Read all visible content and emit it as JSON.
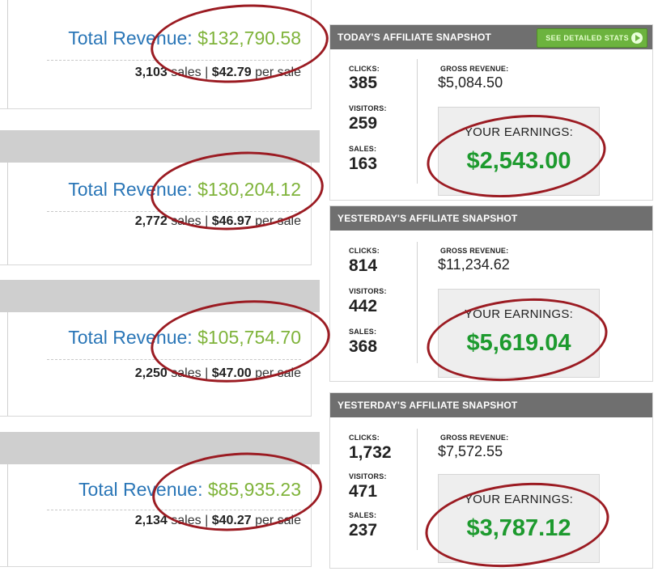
{
  "revenue_cards": [
    {
      "label": "Total Revenue:",
      "value": "$132,790.58",
      "sales": "3,103",
      "sales_word": "sales",
      "sep": "|",
      "per_sale": "$42.79",
      "per_word": "per sale"
    },
    {
      "label": "Total Revenue:",
      "value": "$130,204.12",
      "sales": "2,772",
      "sales_word": "sales",
      "sep": "|",
      "per_sale": "$46.97",
      "per_word": "per sale"
    },
    {
      "label": "Total Revenue:",
      "value": "$105,754.70",
      "sales": "2,250",
      "sales_word": "sales",
      "sep": "|",
      "per_sale": "$47.00",
      "per_word": "per sale"
    },
    {
      "label": "Total Revenue:",
      "value": "$85,935.23",
      "sales": "2,134",
      "sales_word": "sales",
      "sep": "|",
      "per_sale": "$40.27",
      "per_word": "per sale"
    }
  ],
  "snapshots": [
    {
      "title": "TODAY'S AFFILIATE SNAPSHOT",
      "button": "SEE DETAILED STATS",
      "clicks_label": "CLICKS:",
      "clicks": "385",
      "visitors_label": "VISITORS:",
      "visitors": "259",
      "sales_label": "SALES:",
      "sales": "163",
      "gross_label": "GROSS REVENUE:",
      "gross": "$5,084.50",
      "earn_label": "YOUR EARNINGS:",
      "earnings": "$2,543.00"
    },
    {
      "title": "YESTERDAY'S AFFILIATE SNAPSHOT",
      "clicks_label": "CLICKS:",
      "clicks": "814",
      "visitors_label": "VISITORS:",
      "visitors": "442",
      "sales_label": "SALES:",
      "sales": "368",
      "gross_label": "GROSS REVENUE:",
      "gross": "$11,234.62",
      "earn_label": "YOUR EARNINGS:",
      "earnings": "$5,619.04"
    },
    {
      "title": "YESTERDAY'S AFFILIATE SNAPSHOT",
      "clicks_label": "CLICKS:",
      "clicks": "1,732",
      "visitors_label": "VISITORS:",
      "visitors": "471",
      "sales_label": "SALES:",
      "sales": "237",
      "gross_label": "GROSS REVENUE:",
      "gross": "$7,572.55",
      "earn_label": "YOUR EARNINGS:",
      "earnings": "$3,787.12"
    }
  ],
  "colors": {
    "revenue_label": "#2a76b7",
    "revenue_value": "#7fb33a",
    "earnings": "#1d9a2e",
    "annotation": "#9b1b22",
    "header_bg": "#6f6f6f",
    "button_bg": "#6cb33e"
  }
}
